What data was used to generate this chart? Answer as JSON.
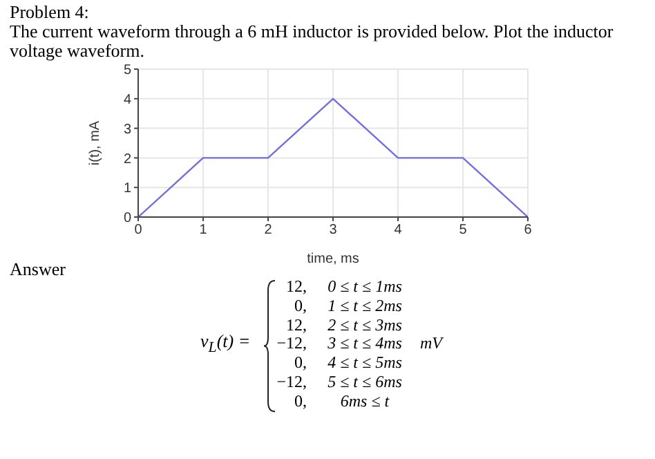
{
  "chart_data": {
    "type": "line",
    "title": "Problem 4:",
    "subtitle": "The current waveform through a 6 mH inductor is provided below.  Plot the inductor voltage waveform.",
    "xlabel": "time, ms",
    "ylabel": "i(t), mA",
    "x": [
      0,
      1,
      2,
      3,
      4,
      5,
      6
    ],
    "series": [
      {
        "color": "#6f6fe0",
        "values": [
          0,
          2,
          2,
          4,
          2,
          2,
          0
        ]
      }
    ],
    "xlim": [
      0,
      6
    ],
    "ylim": [
      0,
      5
    ],
    "xticks": [
      0,
      1,
      2,
      3,
      4,
      5,
      6
    ],
    "yticks": [
      0,
      1,
      2,
      3,
      4,
      5
    ],
    "grid": true,
    "marker": "none",
    "line_style": "solid",
    "annotations": [
      "Answer",
      "v$_{L}$(t) =",
      "12,",
      "0 ≤ t ≤ 1ms",
      "0,",
      "1 ≤ t ≤ 2ms",
      "12,",
      "2 ≤ t ≤ 3ms",
      "−12,",
      "3 ≤ t ≤ 4ms",
      "0,",
      "4 ≤ t ≤ 5ms",
      "−12,",
      "5 ≤ t ≤ 6ms",
      "0,",
      "6ms ≤ t",
      "mV"
    ]
  }
}
